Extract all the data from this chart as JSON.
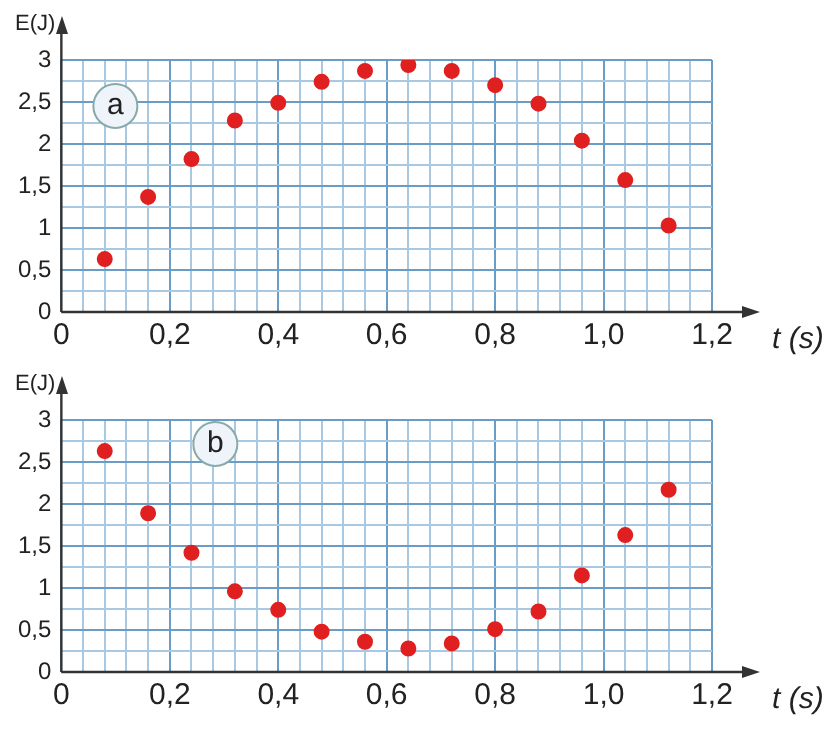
{
  "chart_data": [
    {
      "type": "scatter",
      "annotations": [
        "a"
      ],
      "xlabel": "t (s)",
      "ylabel": "E(J)",
      "x": [
        0.08,
        0.16,
        0.24,
        0.32,
        0.4,
        0.48,
        0.56,
        0.64,
        0.72,
        0.8,
        0.88,
        0.96,
        1.04,
        1.12
      ],
      "series": [
        {
          "color": "#e02020",
          "values": [
            0.63,
            1.37,
            1.82,
            2.28,
            2.49,
            2.74,
            2.87,
            2.94,
            2.87,
            2.7,
            2.48,
            2.04,
            1.57,
            1.03
          ]
        }
      ],
      "xlim": [
        0,
        1.2
      ],
      "ylim": [
        0,
        3
      ],
      "xticks": [
        0,
        {
          "value": 0.04,
          "label": null
        },
        {
          "value": 0.08,
          "label": null
        },
        {
          "value": 0.12,
          "label": null
        },
        {
          "value": 0.16,
          "label": null
        },
        {
          "value": 0.2,
          "label": "0,2"
        },
        {
          "value": 0.24,
          "label": null
        },
        {
          "value": 0.28,
          "label": null
        },
        {
          "value": 0.32,
          "label": null
        },
        {
          "value": 0.36,
          "label": null
        },
        {
          "value": 0.4,
          "label": "0,4"
        },
        {
          "value": 0.44,
          "label": null
        },
        {
          "value": 0.48,
          "label": null
        },
        {
          "value": 0.52,
          "label": null
        },
        {
          "value": 0.56,
          "label": null
        },
        {
          "value": 0.6,
          "label": "0,6"
        },
        {
          "value": 0.64,
          "label": null
        },
        {
          "value": 0.68,
          "label": null
        },
        {
          "value": 0.72,
          "label": null
        },
        {
          "value": 0.76,
          "label": null
        },
        {
          "value": 0.8,
          "label": "0,8"
        },
        {
          "value": 0.84,
          "label": null
        },
        {
          "value": 0.88,
          "label": null
        },
        {
          "value": 0.92,
          "label": null
        },
        {
          "value": 0.96,
          "label": null
        },
        {
          "value": 1.0,
          "label": "1,0"
        },
        {
          "value": 1.04,
          "label": null
        },
        {
          "value": 1.08,
          "label": null
        },
        {
          "value": 1.12,
          "label": null
        },
        {
          "value": 1.16,
          "label": null
        },
        {
          "value": 1.2,
          "label": "1,2"
        }
      ],
      "yticks": [
        0,
        {
          "value": 0.25,
          "label": null
        },
        {
          "value": 0.5,
          "label": "0,5"
        },
        {
          "value": 0.75,
          "label": null
        },
        1,
        {
          "value": 1.25,
          "label": null
        },
        {
          "value": 1.5,
          "label": "1,5"
        },
        {
          "value": 1.75,
          "label": null
        },
        2,
        {
          "value": 2.25,
          "label": null
        },
        {
          "value": 2.5,
          "label": "2,5"
        },
        {
          "value": 2.75,
          "label": null
        },
        3
      ],
      "grid": true,
      "marker": "circle",
      "legend": false
    },
    {
      "type": "scatter",
      "annotations": [
        "b"
      ],
      "xlabel": "t (s)",
      "ylabel": "E(J)",
      "x": [
        0.08,
        0.16,
        0.24,
        0.32,
        0.4,
        0.48,
        0.56,
        0.64,
        0.72,
        0.8,
        0.88,
        0.96,
        1.04,
        1.12
      ],
      "series": [
        {
          "color": "#e02020",
          "values": [
            2.63,
            1.89,
            1.42,
            0.96,
            0.74,
            0.48,
            0.36,
            0.28,
            0.34,
            0.51,
            0.72,
            1.15,
            1.63,
            2.17
          ]
        }
      ],
      "xlim": [
        0,
        1.2
      ],
      "ylim": [
        0,
        3
      ],
      "xticks": [
        0,
        {
          "value": 0.04,
          "label": null
        },
        {
          "value": 0.08,
          "label": null
        },
        {
          "value": 0.12,
          "label": null
        },
        {
          "value": 0.16,
          "label": null
        },
        {
          "value": 0.2,
          "label": "0,2"
        },
        {
          "value": 0.24,
          "label": null
        },
        {
          "value": 0.28,
          "label": null
        },
        {
          "value": 0.32,
          "label": null
        },
        {
          "value": 0.36,
          "label": null
        },
        {
          "value": 0.4,
          "label": "0,4"
        },
        {
          "value": 0.44,
          "label": null
        },
        {
          "value": 0.48,
          "label": null
        },
        {
          "value": 0.52,
          "label": null
        },
        {
          "value": 0.56,
          "label": null
        },
        {
          "value": 0.6,
          "label": "0,6"
        },
        {
          "value": 0.64,
          "label": null
        },
        {
          "value": 0.68,
          "label": null
        },
        {
          "value": 0.72,
          "label": null
        },
        {
          "value": 0.76,
          "label": null
        },
        {
          "value": 0.8,
          "label": "0,8"
        },
        {
          "value": 0.84,
          "label": null
        },
        {
          "value": 0.88,
          "label": null
        },
        {
          "value": 0.92,
          "label": null
        },
        {
          "value": 0.96,
          "label": null
        },
        {
          "value": 1.0,
          "label": "1,0"
        },
        {
          "value": 1.04,
          "label": null
        },
        {
          "value": 1.08,
          "label": null
        },
        {
          "value": 1.12,
          "label": null
        },
        {
          "value": 1.16,
          "label": null
        },
        {
          "value": 1.2,
          "label": "1,2"
        }
      ],
      "yticks": [
        0,
        {
          "value": 0.25,
          "label": null
        },
        {
          "value": 0.5,
          "label": "0,5"
        },
        {
          "value": 0.75,
          "label": null
        },
        1,
        {
          "value": 1.25,
          "label": null
        },
        {
          "value": 1.5,
          "label": "1,5"
        },
        {
          "value": 1.75,
          "label": null
        },
        2,
        {
          "value": 2.25,
          "label": null
        },
        {
          "value": 2.5,
          "label": "2,5"
        },
        {
          "value": 2.75,
          "label": null
        },
        3
      ],
      "grid": true,
      "marker": "circle",
      "legend": false
    }
  ]
}
